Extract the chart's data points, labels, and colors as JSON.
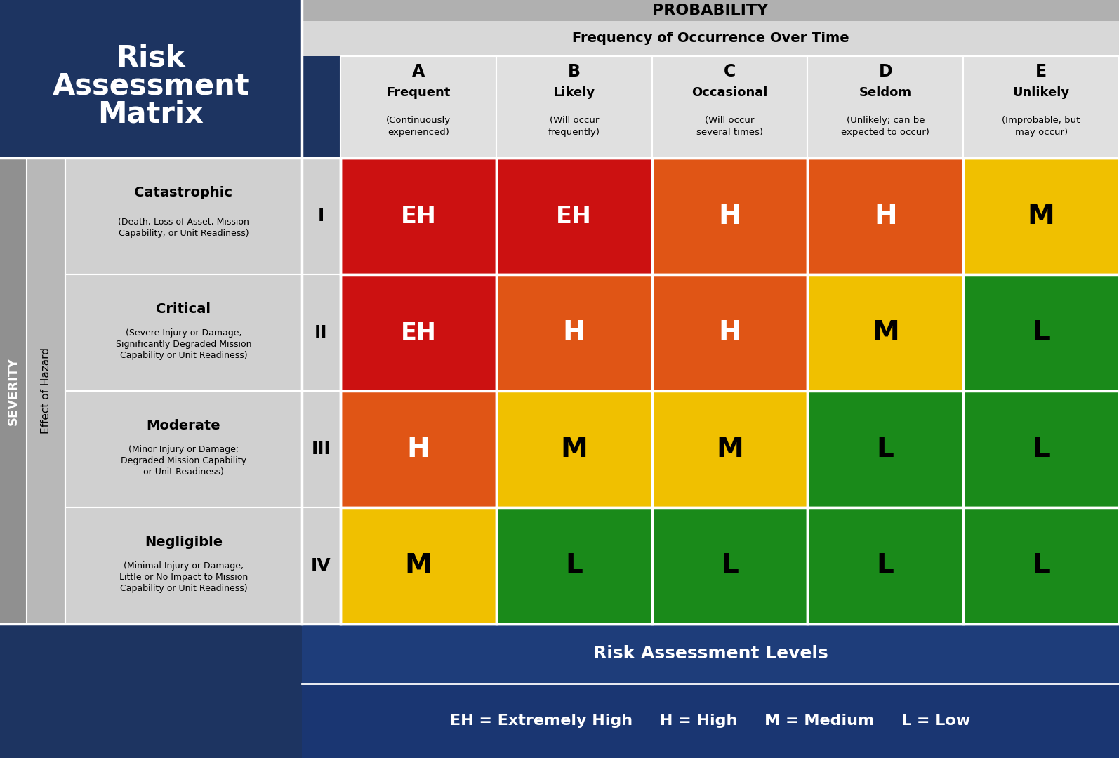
{
  "dark_blue": "#1d3461",
  "prob_header_bg": "#c8c8c8",
  "freq_header_bg": "#d8d8d8",
  "col_header_bg": "#e0e0e0",
  "severity_col_bg": "#909090",
  "effect_col_bg": "#b8b8b8",
  "desc_col_bg": "#d0d0d0",
  "roman_col_bg": "#d0d0d0",
  "white": "#ffffff",
  "black": "#000000",
  "cell_colors": [
    [
      "#cc1111",
      "#cc1111",
      "#e05515",
      "#e05515",
      "#f0c000"
    ],
    [
      "#cc1111",
      "#e05515",
      "#e05515",
      "#f0c000",
      "#1a8a1a"
    ],
    [
      "#e05515",
      "#f0c000",
      "#f0c000",
      "#1a8a1a",
      "#1a8a1a"
    ],
    [
      "#f0c000",
      "#1a8a1a",
      "#1a8a1a",
      "#1a8a1a",
      "#1a8a1a"
    ]
  ],
  "cell_labels": [
    [
      "EH",
      "EH",
      "H",
      "H",
      "M"
    ],
    [
      "EH",
      "H",
      "H",
      "M",
      "L"
    ],
    [
      "H",
      "M",
      "M",
      "L",
      "L"
    ],
    [
      "M",
      "L",
      "L",
      "L",
      "L"
    ]
  ],
  "cell_label_white": [
    [
      true,
      true,
      true,
      true,
      false
    ],
    [
      true,
      true,
      true,
      false,
      false
    ],
    [
      true,
      false,
      false,
      false,
      false
    ],
    [
      false,
      false,
      false,
      false,
      false
    ]
  ],
  "prob_cols": [
    "A",
    "B",
    "C",
    "D",
    "E"
  ],
  "prob_col_names": [
    "Frequent",
    "Likely",
    "Occasional",
    "Seldom",
    "Unlikely"
  ],
  "prob_col_descs": [
    "(Continuously\nexperienced)",
    "(Will occur\nfrequently)",
    "(Will occur\nseveral times)",
    "(Unlikely; can be\nexpected to occur)",
    "(Improbable, but\nmay occur)"
  ],
  "sev_rows": [
    "I",
    "II",
    "III",
    "IV"
  ],
  "sev_row_names": [
    "Catastrophic",
    "Critical",
    "Moderate",
    "Negligible"
  ],
  "sev_row_descs": [
    "(Death; Loss of Asset, Mission\nCapability, or Unit Readiness)",
    "(Severe Injury or Damage;\nSignificantly Degraded Mission\nCapability or Unit Readiness)",
    "(Minor Injury or Damage;\nDegraded Mission Capability\nor Unit Readiness)",
    "(Minimal Injury or Damage;\nLittle or No Impact to Mission\nCapability or Unit Readiness)"
  ],
  "title_line1": "Risk",
  "title_line2": "Assessment",
  "title_line3": "Matrix",
  "footer_title": "Risk Assessment Levels",
  "footer_legend": "EH = Extremely High     H = High     M = Medium     L = Low"
}
